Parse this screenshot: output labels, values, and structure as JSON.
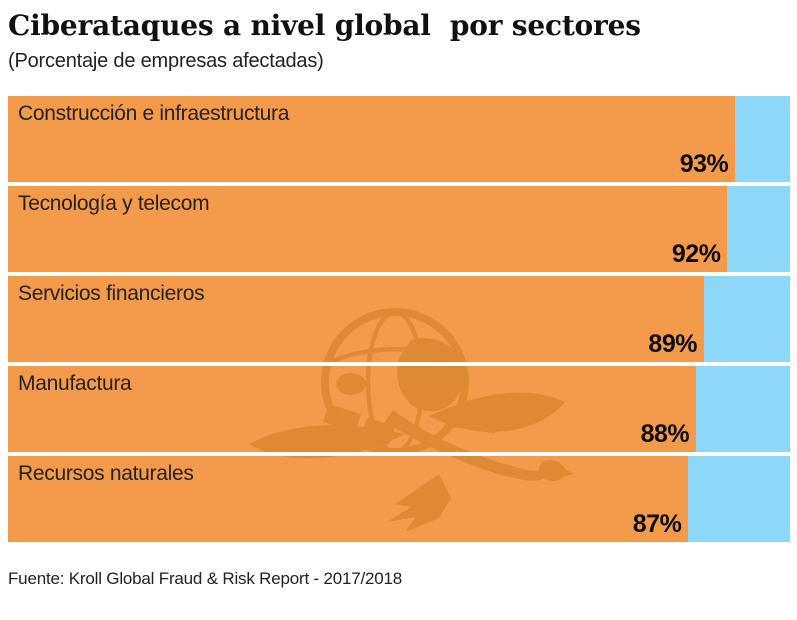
{
  "header": {
    "title": "Ciberataques a nivel global  por sectores",
    "subtitle": "(Porcentaje de empresas afectadas)"
  },
  "chart_data": {
    "type": "bar",
    "orientation": "horizontal",
    "title": "Ciberataques a nivel global por sectores",
    "subtitle": "(Porcentaje de empresas afectadas)",
    "categories": [
      "Construcción e infraestructura",
      "Tecnología y telecom",
      "Servicios financieros",
      "Manufactura",
      "Recursos naturales"
    ],
    "values": [
      93,
      92,
      89,
      88,
      87
    ],
    "value_suffix": "%",
    "xlim": [
      0,
      100
    ],
    "grid": false,
    "legend": false,
    "bar_color": "#F49B4B",
    "track_color": "#8DD8F8",
    "category_label_position": "inside-top-left",
    "value_label_position": "inside-bottom-right"
  },
  "watermark": {
    "icon": "eagle-globe-logo",
    "color": "#D9852F"
  },
  "footer": {
    "source": "Fuente: Kroll Global Fraud & Risk Report - 2017/2018"
  },
  "colors": {
    "background": "#FFFFFF",
    "title_text": "#111111",
    "label_text": "#222222",
    "value_text": "#0D0D0D"
  }
}
